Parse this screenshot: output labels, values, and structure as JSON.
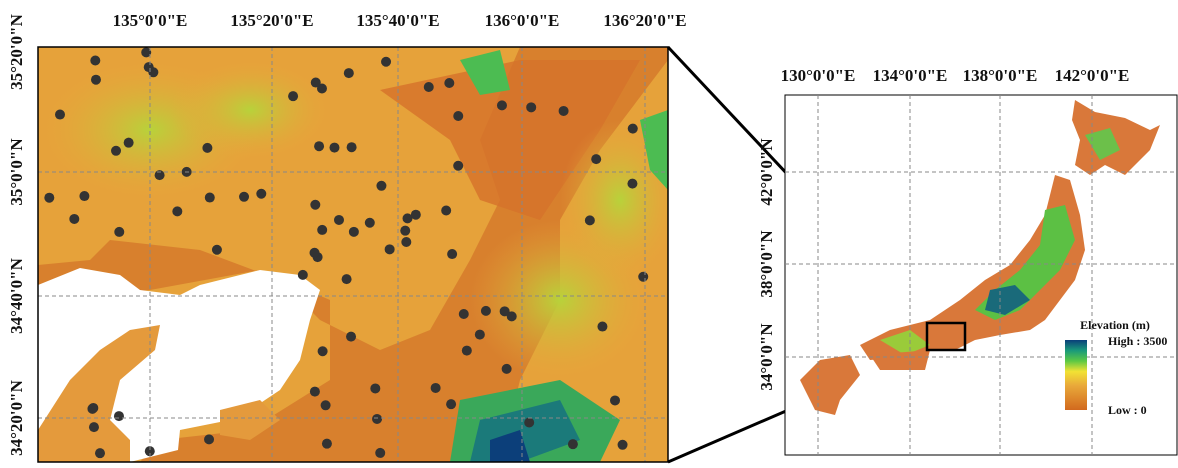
{
  "left_map": {
    "x_labels": [
      "135°0'0\"E",
      "135°20'0\"E",
      "135°40'0\"E",
      "136°0'0\"E",
      "136°20'0\"E"
    ],
    "y_labels": [
      "35°20'0\"N",
      "35°0'0\"N",
      "34°40'0\"N",
      "34°20'0\"N"
    ]
  },
  "right_map": {
    "x_labels": [
      "130°0'0\"E",
      "134°0'0\"E",
      "138°0'0\"E",
      "142°0'0\"E"
    ],
    "y_labels": [
      "42°0'0\"N",
      "38°0'0\"N",
      "34°0'0\"N"
    ]
  },
  "legend": {
    "title": "Elevation (m)",
    "high": "High : 3500",
    "low": "Low : 0"
  }
}
